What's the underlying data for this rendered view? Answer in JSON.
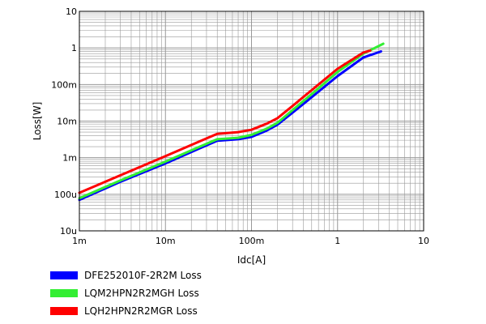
{
  "chart_data": {
    "type": "line",
    "title": "",
    "xlabel": "Idc[A]",
    "ylabel": "Loss[W]",
    "x_scale": "log",
    "y_scale": "log",
    "xlim": [
      0.001,
      10
    ],
    "ylim": [
      1e-05,
      10
    ],
    "grid": true,
    "legend_position": "bottom-left",
    "x_ticks": [
      {
        "value": 0.001,
        "label": "1m"
      },
      {
        "value": 0.01,
        "label": "10m"
      },
      {
        "value": 0.1,
        "label": "100m"
      },
      {
        "value": 1,
        "label": "1"
      },
      {
        "value": 10,
        "label": "10"
      }
    ],
    "y_ticks": [
      {
        "value": 1e-05,
        "label": "10u"
      },
      {
        "value": 0.0001,
        "label": "100u"
      },
      {
        "value": 0.001,
        "label": "1m"
      },
      {
        "value": 0.01,
        "label": "10m"
      },
      {
        "value": 0.1,
        "label": "100m"
      },
      {
        "value": 1,
        "label": "1"
      },
      {
        "value": 10,
        "label": "10"
      }
    ],
    "series": [
      {
        "name": "DFE252010F-2R2M Loss",
        "color": "#0000ff",
        "x": [
          0.001,
          0.003,
          0.01,
          0.025,
          0.04,
          0.07,
          0.1,
          0.15,
          0.2,
          0.3,
          0.5,
          1,
          2,
          3.2
        ],
        "y": [
          7e-05,
          0.00022,
          0.0007,
          0.0018,
          0.0029,
          0.0032,
          0.0037,
          0.0055,
          0.008,
          0.017,
          0.045,
          0.17,
          0.55,
          0.8
        ]
      },
      {
        "name": "LQM2HPN2R2MGH Loss",
        "color": "#33ee33",
        "x": [
          0.001,
          0.003,
          0.01,
          0.025,
          0.04,
          0.07,
          0.1,
          0.15,
          0.2,
          0.3,
          0.5,
          1,
          2,
          3.4
        ],
        "y": [
          7.8e-05,
          0.00024,
          0.00078,
          0.002,
          0.0032,
          0.0035,
          0.0042,
          0.0062,
          0.009,
          0.02,
          0.055,
          0.22,
          0.7,
          1.3
        ]
      },
      {
        "name": "LQH2HPN2R2MGR Loss",
        "color": "#ff0000",
        "x": [
          0.001,
          0.003,
          0.01,
          0.025,
          0.04,
          0.07,
          0.1,
          0.15,
          0.2,
          0.3,
          0.5,
          1,
          2,
          2.4
        ],
        "y": [
          0.00011,
          0.00033,
          0.0011,
          0.0028,
          0.0045,
          0.005,
          0.0058,
          0.0085,
          0.012,
          0.026,
          0.07,
          0.27,
          0.75,
          0.85
        ]
      }
    ]
  }
}
